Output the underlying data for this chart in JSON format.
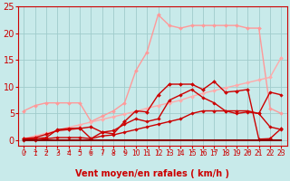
{
  "xlabel": "Vent moyen/en rafales ( km/h )",
  "xlim": [
    -0.5,
    23.5
  ],
  "ylim": [
    -1,
    25
  ],
  "yticks": [
    0,
    5,
    10,
    15,
    20,
    25
  ],
  "xticks": [
    0,
    1,
    2,
    3,
    4,
    5,
    6,
    7,
    8,
    9,
    10,
    11,
    12,
    13,
    14,
    15,
    16,
    17,
    18,
    19,
    20,
    21,
    22,
    23
  ],
  "bg_color": "#c8eaea",
  "grid_color": "#a0cccc",
  "lines": [
    {
      "x": [
        0,
        1,
        2,
        3,
        4,
        5,
        6,
        7,
        8,
        9,
        10,
        11,
        12,
        13,
        14,
        15,
        16,
        17,
        18,
        19,
        20,
        21,
        22,
        23
      ],
      "y": [
        5.5,
        6.5,
        7.0,
        7.0,
        7.0,
        7.0,
        3.5,
        4.5,
        5.5,
        7.0,
        13.0,
        16.5,
        23.5,
        21.5,
        21.0,
        21.5,
        21.5,
        21.5,
        21.5,
        21.5,
        21.0,
        21.0,
        6.0,
        5.0
      ],
      "color": "#ff9999",
      "lw": 1.0,
      "marker": "D",
      "ms": 2.0
    },
    {
      "x": [
        0,
        1,
        2,
        3,
        4,
        5,
        6,
        7,
        8,
        9,
        10,
        11,
        12,
        13,
        14,
        15,
        16,
        17,
        18,
        19,
        20,
        21,
        22,
        23
      ],
      "y": [
        0.3,
        0.8,
        1.3,
        1.8,
        2.4,
        2.9,
        3.4,
        3.9,
        4.4,
        4.9,
        5.4,
        6.0,
        6.5,
        7.0,
        7.5,
        8.2,
        8.8,
        9.3,
        9.8,
        10.3,
        10.8,
        11.3,
        11.8,
        15.5
      ],
      "color": "#ffaaaa",
      "lw": 1.0,
      "marker": "D",
      "ms": 2.0
    },
    {
      "x": [
        0,
        1,
        2,
        3,
        4,
        5,
        6,
        7,
        8,
        9,
        10,
        11,
        12,
        13,
        14,
        15,
        16,
        17,
        18,
        19,
        20,
        21,
        22,
        23
      ],
      "y": [
        0.3,
        0.5,
        1.1,
        1.8,
        2.0,
        2.2,
        2.5,
        1.5,
        1.2,
        3.5,
        5.5,
        5.3,
        8.5,
        10.5,
        10.5,
        10.5,
        9.5,
        11.0,
        9.0,
        9.2,
        9.5,
        0.2,
        0.3,
        2.2
      ],
      "color": "#cc0000",
      "lw": 1.0,
      "marker": "D",
      "ms": 2.0
    },
    {
      "x": [
        0,
        1,
        2,
        3,
        4,
        5,
        6,
        7,
        8,
        9,
        10,
        11,
        12,
        13,
        14,
        15,
        16,
        17,
        18,
        19,
        20,
        21,
        22,
        23
      ],
      "y": [
        0.2,
        0.3,
        0.5,
        2.0,
        2.2,
        2.3,
        0.3,
        1.5,
        1.8,
        3.0,
        4.0,
        3.5,
        4.0,
        7.5,
        8.5,
        9.5,
        8.0,
        7.0,
        5.5,
        5.0,
        5.3,
        5.0,
        9.0,
        8.5
      ],
      "color": "#cc0000",
      "lw": 1.0,
      "marker": "D",
      "ms": 1.8
    },
    {
      "x": [
        0,
        1,
        2,
        3,
        4,
        5,
        6,
        7,
        8,
        9,
        10,
        11,
        12,
        13,
        14,
        15,
        16,
        17,
        18,
        19,
        20,
        21,
        22,
        23
      ],
      "y": [
        0.0,
        0.0,
        0.3,
        0.5,
        0.5,
        0.5,
        0.3,
        0.8,
        1.0,
        1.5,
        2.0,
        2.5,
        3.0,
        3.5,
        4.0,
        5.0,
        5.5,
        5.5,
        5.5,
        5.5,
        5.5,
        5.0,
        2.5,
        2.0
      ],
      "color": "#cc0000",
      "lw": 1.0,
      "marker": "D",
      "ms": 1.8
    },
    {
      "x": [
        0,
        23
      ],
      "y": [
        0.0,
        0.0
      ],
      "color": "#880000",
      "lw": 1.5,
      "marker": null,
      "ms": 0
    }
  ],
  "arrows": [
    "↗",
    "→",
    "→",
    "↗",
    "→",
    "→",
    "↙",
    "↓",
    "↙",
    "↖",
    "↑",
    "↖",
    "↑",
    "↖",
    "↑",
    "↖",
    "↖",
    "→",
    "↖",
    "↑",
    "↗",
    "↖",
    "↑",
    "↑"
  ],
  "xlabel_fontsize": 7,
  "ytick_fontsize": 7,
  "xtick_fontsize": 5.5
}
